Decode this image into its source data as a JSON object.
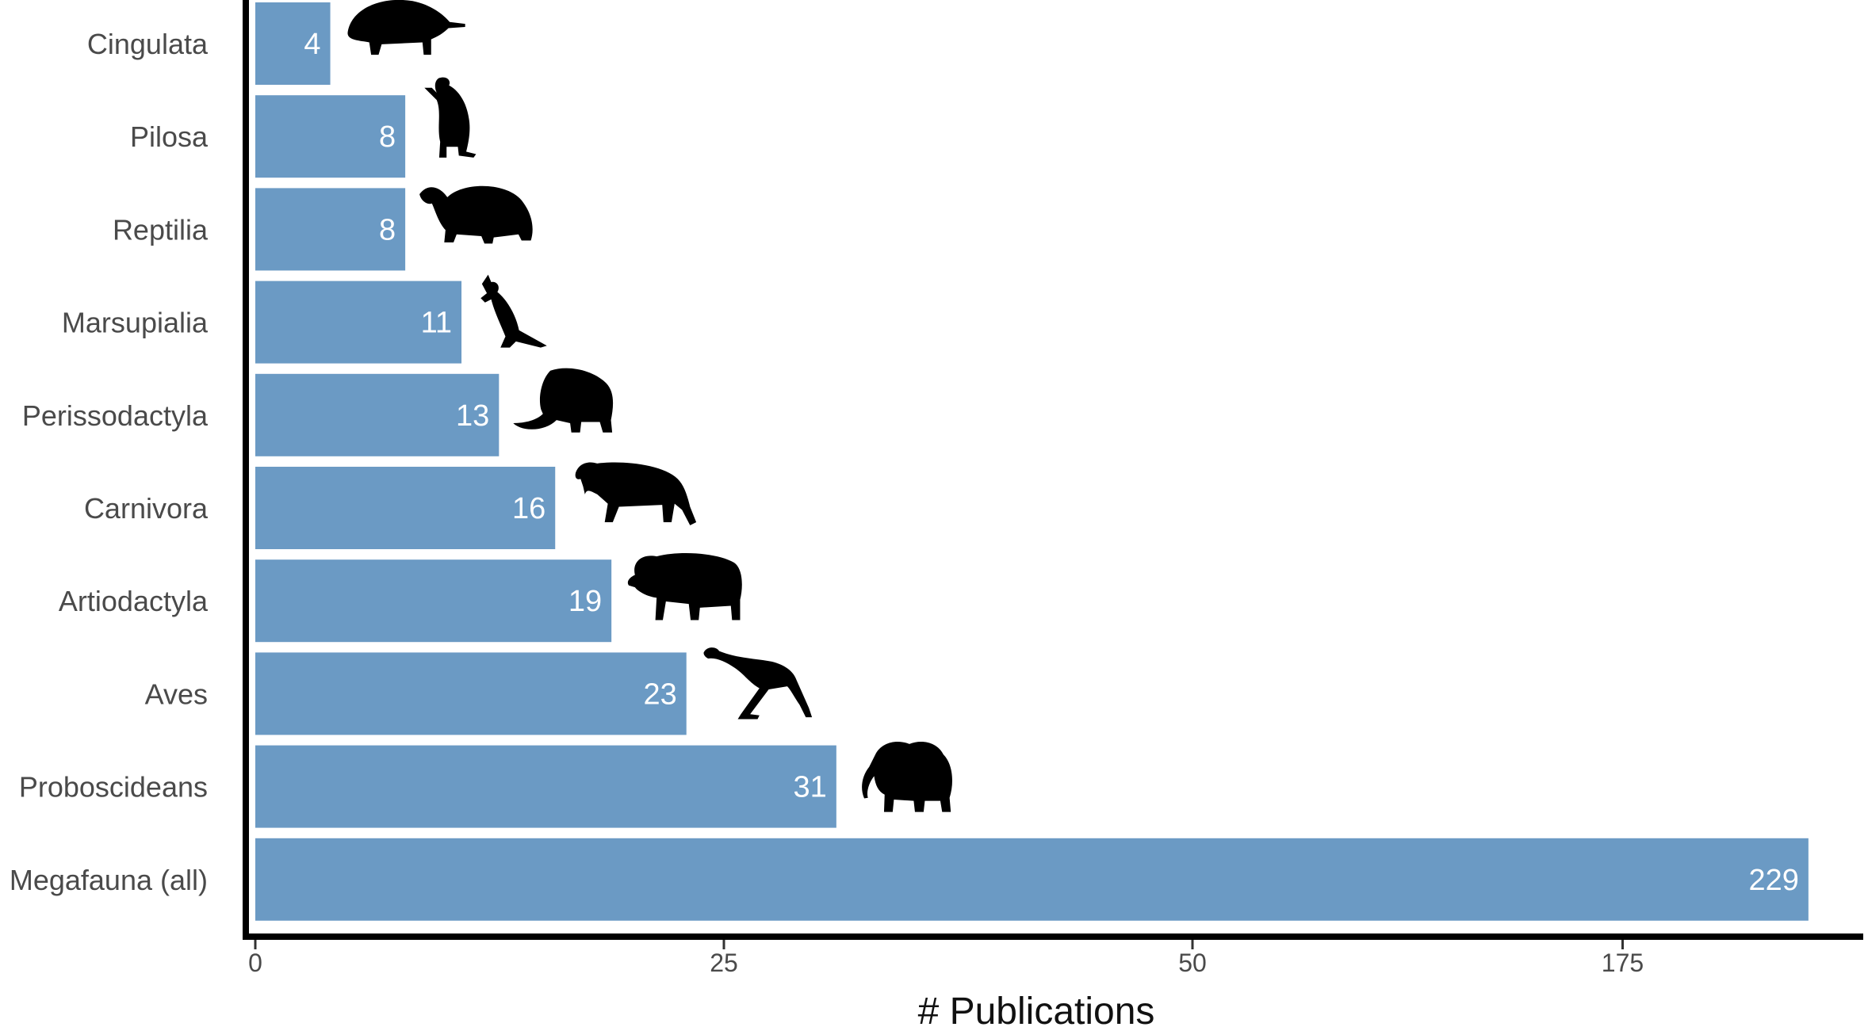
{
  "chart_data": {
    "type": "bar",
    "orientation": "horizontal",
    "xlabel": "# Publications",
    "categories": [
      "Cingulata",
      "Pilosa",
      "Reptilia",
      "Marsupialia",
      "Perissodactyla",
      "Carnivora",
      "Artiodactyla",
      "Aves",
      "Proboscideans",
      "Megafauna (all)"
    ],
    "values": [
      4,
      8,
      8,
      11,
      13,
      16,
      19,
      23,
      31,
      229
    ],
    "x_ticks": [
      0,
      25,
      50,
      175
    ],
    "axis_break": "between 50 and 175",
    "grid": false,
    "bar_color": "#6b9ac4",
    "silhouettes": [
      "glyptodont",
      "ground-sloth",
      "tortoise",
      "kangaroo",
      "woolly-rhino",
      "sabertooth-cat",
      "bison",
      "moa",
      "mammoth",
      "none"
    ]
  }
}
